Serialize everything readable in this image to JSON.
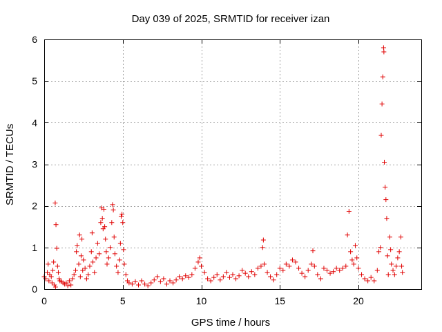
{
  "chart_data": {
    "type": "scatter",
    "title": "Day 039 of 2025, SRMTID for receiver izan",
    "xlabel": "GPS time / hours",
    "ylabel": "SRMTID / TECUs",
    "xlim": [
      0,
      24
    ],
    "ylim": [
      0,
      6
    ],
    "xticks": [
      0,
      5,
      10,
      15,
      20
    ],
    "xtick_labels": [
      "0",
      "5",
      "10",
      "15",
      "20"
    ],
    "yticks": [
      0,
      1,
      2,
      3,
      4,
      5,
      6
    ],
    "ytick_labels": [
      "0",
      "1",
      "2",
      "3",
      "4",
      "5",
      "6"
    ],
    "grid": true,
    "marker": "+",
    "color": "#e00000",
    "series": [
      {
        "name": "SRMTID",
        "points": [
          [
            0.0,
            0.3
          ],
          [
            0.1,
            0.25
          ],
          [
            0.2,
            0.4
          ],
          [
            0.25,
            0.6
          ],
          [
            0.3,
            0.2
          ],
          [
            0.35,
            0.35
          ],
          [
            0.45,
            0.3
          ],
          [
            0.5,
            0.15
          ],
          [
            0.55,
            0.45
          ],
          [
            0.6,
            0.65
          ],
          [
            0.65,
            0.1
          ],
          [
            0.7,
            2.07
          ],
          [
            0.72,
            0.05
          ],
          [
            0.75,
            1.55
          ],
          [
            0.8,
            0.98
          ],
          [
            0.85,
            0.55
          ],
          [
            0.9,
            0.4
          ],
          [
            0.95,
            0.25
          ],
          [
            1.0,
            0.2
          ],
          [
            1.1,
            0.18
          ],
          [
            1.2,
            0.15
          ],
          [
            1.3,
            0.12
          ],
          [
            1.4,
            0.15
          ],
          [
            1.5,
            0.08
          ],
          [
            1.6,
            0.2
          ],
          [
            1.7,
            0.1
          ],
          [
            1.8,
            0.25
          ],
          [
            1.9,
            0.35
          ],
          [
            2.0,
            0.45
          ],
          [
            2.05,
            0.9
          ],
          [
            2.1,
            1.05
          ],
          [
            2.2,
            0.6
          ],
          [
            2.25,
            1.3
          ],
          [
            2.3,
            0.3
          ],
          [
            2.35,
            0.8
          ],
          [
            2.4,
            1.2
          ],
          [
            2.45,
            0.45
          ],
          [
            2.5,
            0.7
          ],
          [
            2.6,
            0.5
          ],
          [
            2.7,
            0.25
          ],
          [
            2.8,
            0.35
          ],
          [
            2.9,
            0.55
          ],
          [
            3.0,
            0.9
          ],
          [
            3.05,
            1.35
          ],
          [
            3.1,
            0.65
          ],
          [
            3.2,
            0.4
          ],
          [
            3.3,
            0.75
          ],
          [
            3.4,
            1.1
          ],
          [
            3.5,
            0.85
          ],
          [
            3.6,
            1.6
          ],
          [
            3.65,
            1.95
          ],
          [
            3.7,
            1.7
          ],
          [
            3.75,
            1.45
          ],
          [
            3.8,
            1.92
          ],
          [
            3.85,
            1.5
          ],
          [
            3.9,
            1.2
          ],
          [
            3.95,
            0.9
          ],
          [
            4.0,
            0.6
          ],
          [
            4.1,
            0.75
          ],
          [
            4.2,
            1.0
          ],
          [
            4.3,
            1.6
          ],
          [
            4.35,
            2.03
          ],
          [
            4.4,
            1.9
          ],
          [
            4.45,
            1.25
          ],
          [
            4.5,
            0.85
          ],
          [
            4.6,
            0.55
          ],
          [
            4.7,
            0.4
          ],
          [
            4.8,
            0.7
          ],
          [
            4.85,
            1.1
          ],
          [
            4.9,
            1.75
          ],
          [
            4.95,
            1.8
          ],
          [
            5.0,
            1.6
          ],
          [
            5.05,
            0.95
          ],
          [
            5.1,
            0.6
          ],
          [
            5.2,
            0.35
          ],
          [
            5.3,
            0.2
          ],
          [
            5.4,
            0.15
          ],
          [
            5.6,
            0.12
          ],
          [
            5.8,
            0.18
          ],
          [
            6.0,
            0.1
          ],
          [
            6.2,
            0.2
          ],
          [
            6.4,
            0.12
          ],
          [
            6.6,
            0.08
          ],
          [
            6.8,
            0.15
          ],
          [
            7.0,
            0.22
          ],
          [
            7.2,
            0.3
          ],
          [
            7.4,
            0.18
          ],
          [
            7.6,
            0.25
          ],
          [
            7.8,
            0.12
          ],
          [
            8.0,
            0.2
          ],
          [
            8.2,
            0.15
          ],
          [
            8.4,
            0.22
          ],
          [
            8.6,
            0.3
          ],
          [
            8.8,
            0.25
          ],
          [
            9.0,
            0.32
          ],
          [
            9.2,
            0.28
          ],
          [
            9.4,
            0.35
          ],
          [
            9.6,
            0.5
          ],
          [
            9.8,
            0.65
          ],
          [
            9.9,
            0.75
          ],
          [
            10.0,
            0.55
          ],
          [
            10.2,
            0.4
          ],
          [
            10.4,
            0.25
          ],
          [
            10.6,
            0.2
          ],
          [
            10.8,
            0.28
          ],
          [
            11.0,
            0.35
          ],
          [
            11.2,
            0.22
          ],
          [
            11.4,
            0.3
          ],
          [
            11.6,
            0.4
          ],
          [
            11.8,
            0.28
          ],
          [
            12.0,
            0.35
          ],
          [
            12.2,
            0.25
          ],
          [
            12.4,
            0.32
          ],
          [
            12.6,
            0.45
          ],
          [
            12.8,
            0.38
          ],
          [
            13.0,
            0.3
          ],
          [
            13.2,
            0.42
          ],
          [
            13.4,
            0.35
          ],
          [
            13.6,
            0.5
          ],
          [
            13.8,
            0.55
          ],
          [
            13.9,
            1.0
          ],
          [
            13.95,
            1.18
          ],
          [
            14.0,
            0.6
          ],
          [
            14.2,
            0.4
          ],
          [
            14.4,
            0.3
          ],
          [
            14.6,
            0.22
          ],
          [
            14.8,
            0.35
          ],
          [
            15.0,
            0.5
          ],
          [
            15.2,
            0.45
          ],
          [
            15.4,
            0.6
          ],
          [
            15.6,
            0.55
          ],
          [
            15.8,
            0.7
          ],
          [
            16.0,
            0.65
          ],
          [
            16.2,
            0.5
          ],
          [
            16.4,
            0.38
          ],
          [
            16.6,
            0.3
          ],
          [
            16.8,
            0.45
          ],
          [
            17.0,
            0.6
          ],
          [
            17.1,
            0.92
          ],
          [
            17.2,
            0.55
          ],
          [
            17.4,
            0.35
          ],
          [
            17.6,
            0.25
          ],
          [
            17.8,
            0.5
          ],
          [
            18.0,
            0.45
          ],
          [
            18.2,
            0.38
          ],
          [
            18.4,
            0.42
          ],
          [
            18.6,
            0.5
          ],
          [
            18.8,
            0.45
          ],
          [
            19.0,
            0.5
          ],
          [
            19.2,
            0.55
          ],
          [
            19.3,
            1.3
          ],
          [
            19.4,
            1.87
          ],
          [
            19.5,
            0.9
          ],
          [
            19.6,
            0.7
          ],
          [
            19.7,
            0.6
          ],
          [
            19.8,
            1.05
          ],
          [
            19.9,
            0.75
          ],
          [
            20.0,
            0.5
          ],
          [
            20.2,
            0.35
          ],
          [
            20.4,
            0.25
          ],
          [
            20.6,
            0.2
          ],
          [
            20.8,
            0.28
          ],
          [
            21.0,
            0.2
          ],
          [
            21.2,
            0.45
          ],
          [
            21.3,
            0.9
          ],
          [
            21.4,
            1.0
          ],
          [
            21.45,
            3.7
          ],
          [
            21.5,
            4.45
          ],
          [
            21.55,
            5.1
          ],
          [
            21.6,
            5.8
          ],
          [
            21.62,
            5.7
          ],
          [
            21.65,
            3.05
          ],
          [
            21.7,
            2.45
          ],
          [
            21.75,
            2.15
          ],
          [
            21.8,
            1.7
          ],
          [
            21.85,
            0.8
          ],
          [
            21.9,
            0.35
          ],
          [
            22.0,
            1.25
          ],
          [
            22.05,
            0.95
          ],
          [
            22.1,
            0.6
          ],
          [
            22.2,
            0.45
          ],
          [
            22.3,
            0.35
          ],
          [
            22.4,
            0.55
          ],
          [
            22.5,
            0.75
          ],
          [
            22.6,
            0.9
          ],
          [
            22.7,
            1.25
          ],
          [
            22.75,
            0.55
          ],
          [
            22.8,
            0.4
          ]
        ]
      }
    ]
  }
}
